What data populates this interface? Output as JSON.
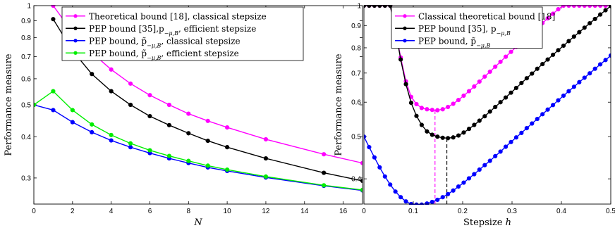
{
  "chart_data": [
    {
      "type": "line",
      "xlabel": "N",
      "ylabel": "Performance measure",
      "yscale": "log",
      "xlim": [
        0,
        17
      ],
      "ylim": [
        0.25,
        1
      ],
      "xticks": [
        0,
        2,
        4,
        6,
        8,
        10,
        12,
        14,
        16
      ],
      "yticks": [
        0.3,
        0.4,
        0.5,
        0.6,
        0.7,
        0.8,
        0.9,
        1
      ],
      "ytick_labels": [
        "0.3",
        "0.4",
        "0.5",
        "0.6",
        "0.7",
        "0.8",
        "0.9",
        "1"
      ],
      "legend": "top-right",
      "series": [
        {
          "name": "Theoretical bound [18], classical stepsize",
          "color": "#ff00ff",
          "x": [
            1,
            2,
            3,
            4,
            5,
            6,
            7,
            8,
            9,
            10,
            12,
            15,
            17
          ],
          "values": [
            1.0,
            0.83,
            0.72,
            0.64,
            0.58,
            0.535,
            0.5,
            0.47,
            0.447,
            0.427,
            0.393,
            0.354,
            0.333
          ]
        },
        {
          "name": "PEP bound [35],p_{−μ,B}, efficient stepsize",
          "color": "#000000",
          "x": [
            1,
            2,
            3,
            4,
            5,
            6,
            7,
            8,
            9,
            10,
            12,
            15,
            17
          ],
          "values": [
            0.91,
            0.73,
            0.62,
            0.55,
            0.5,
            0.462,
            0.434,
            0.41,
            0.389,
            0.372,
            0.344,
            0.311,
            0.294
          ]
        },
        {
          "name": "PEP bound, p̃_{−μ,B}, classical stepsize",
          "color": "#0000ff",
          "x": [
            0,
            1,
            2,
            3,
            4,
            5,
            6,
            7,
            8,
            9,
            10,
            12,
            15,
            17
          ],
          "values": [
            0.5,
            0.482,
            0.443,
            0.413,
            0.39,
            0.372,
            0.357,
            0.344,
            0.333,
            0.323,
            0.315,
            0.301,
            0.284,
            0.275
          ]
        },
        {
          "name": "PEP bound, p̃_{−μ,B}, efficient stepsize",
          "color": "#00ee00",
          "x": [
            0,
            1,
            2,
            3,
            4,
            5,
            6,
            7,
            8,
            9,
            10,
            12,
            15,
            17
          ],
          "values": [
            0.5,
            0.55,
            0.482,
            0.436,
            0.405,
            0.382,
            0.364,
            0.35,
            0.338,
            0.327,
            0.318,
            0.303,
            0.285,
            0.276
          ]
        }
      ]
    },
    {
      "type": "line",
      "xlabel": "Stepsize h",
      "ylabel": "Performance measure",
      "yscale": "log",
      "xlim": [
        0,
        0.5
      ],
      "ylim": [
        0.35,
        1
      ],
      "xticks": [
        0,
        0.1,
        0.2,
        0.3,
        0.4,
        0.5
      ],
      "xtick_labels": [
        "0",
        "0.1",
        "0.2",
        "0.3",
        "0.4",
        "0.5"
      ],
      "yticks": [
        0.4,
        0.5,
        0.6,
        0.7,
        0.8,
        0.9,
        1
      ],
      "ytick_labels": [
        "0.4",
        "0.5",
        "0.6",
        "0.7",
        "0.8",
        "0.9",
        "1"
      ],
      "legend": "top-left",
      "series": [
        {
          "name": "Classical theoretical bound [18]",
          "color": "#ff00ff",
          "h_opt": 0.144,
          "x": [
            0.0,
            0.0106,
            0.0213,
            0.0319,
            0.0426,
            0.0532,
            0.0638,
            0.0745,
            0.0851,
            0.0957,
            0.1064,
            0.117,
            0.1277,
            0.1383,
            0.1489,
            0.1596,
            0.1702,
            0.1809,
            0.1915,
            0.2021,
            0.2128,
            0.2234,
            0.234,
            0.2447,
            0.2553,
            0.266,
            0.2766,
            0.2872,
            0.2979,
            0.3085,
            0.3191,
            0.3298,
            0.3404,
            0.3511,
            0.3617,
            0.3723,
            0.383,
            0.3936,
            0.4043,
            0.4149,
            0.4255,
            0.4362,
            0.4468,
            0.4574,
            0.4681,
            0.4787,
            0.4894,
            0.5
          ],
          "values": [
            1.0,
            1.0,
            1.0,
            1.0,
            1.0,
            1.0,
            0.88,
            0.76,
            0.67,
            0.617,
            0.594,
            0.582,
            0.578,
            0.576,
            0.575,
            0.578,
            0.585,
            0.595,
            0.607,
            0.621,
            0.636,
            0.652,
            0.669,
            0.687,
            0.705,
            0.724,
            0.743,
            0.763,
            0.783,
            0.804,
            0.825,
            0.846,
            0.868,
            0.89,
            0.912,
            0.935,
            0.958,
            0.981,
            1.0,
            1.0,
            1.0,
            1.0,
            1.0,
            1.0,
            1.0,
            1.0,
            1.0,
            1.0
          ]
        },
        {
          "name": "PEP bound [35], p_{−μ,B}",
          "color": "#000000",
          "h_opt": 0.168,
          "x": [
            0.0,
            0.0106,
            0.0213,
            0.0319,
            0.0426,
            0.0532,
            0.0638,
            0.0745,
            0.0851,
            0.0957,
            0.1064,
            0.117,
            0.1277,
            0.1383,
            0.1489,
            0.1596,
            0.1702,
            0.1809,
            0.1915,
            0.2021,
            0.2128,
            0.2234,
            0.234,
            0.2447,
            0.2553,
            0.266,
            0.2766,
            0.2872,
            0.2979,
            0.3085,
            0.3191,
            0.3298,
            0.3404,
            0.3511,
            0.3617,
            0.3723,
            0.383,
            0.3936,
            0.4043,
            0.4149,
            0.4255,
            0.4362,
            0.4468,
            0.4574,
            0.4681,
            0.4787,
            0.4894,
            0.5
          ],
          "values": [
            1.0,
            1.0,
            1.0,
            1.0,
            1.0,
            1.0,
            0.88,
            0.752,
            0.66,
            0.598,
            0.558,
            0.532,
            0.514,
            0.505,
            0.5,
            0.497,
            0.496,
            0.498,
            0.503,
            0.511,
            0.521,
            0.532,
            0.544,
            0.557,
            0.571,
            0.585,
            0.6,
            0.615,
            0.631,
            0.647,
            0.664,
            0.681,
            0.698,
            0.716,
            0.734,
            0.752,
            0.771,
            0.79,
            0.809,
            0.829,
            0.849,
            0.869,
            0.89,
            0.911,
            0.932,
            0.954,
            0.976,
            0.998
          ]
        },
        {
          "name": "PEP bound, p̃_{−μ,B}",
          "color": "#0000ff",
          "h_opt": 0.103,
          "x": [
            0.0,
            0.0106,
            0.0213,
            0.0319,
            0.0426,
            0.0532,
            0.0638,
            0.0745,
            0.0851,
            0.0957,
            0.1064,
            0.117,
            0.1277,
            0.1383,
            0.1489,
            0.1596,
            0.1702,
            0.1809,
            0.1915,
            0.2021,
            0.2128,
            0.2234,
            0.234,
            0.2447,
            0.2553,
            0.266,
            0.2766,
            0.2872,
            0.2979,
            0.3085,
            0.3191,
            0.3298,
            0.3404,
            0.3511,
            0.3617,
            0.3723,
            0.383,
            0.3936,
            0.4043,
            0.4149,
            0.4255,
            0.4362,
            0.4468,
            0.4574,
            0.4681,
            0.4787,
            0.4894,
            0.5
          ],
          "values": [
            0.5,
            0.473,
            0.448,
            0.425,
            0.405,
            0.388,
            0.374,
            0.363,
            0.355,
            0.35,
            0.349,
            0.349,
            0.351,
            0.354,
            0.358,
            0.363,
            0.369,
            0.376,
            0.384,
            0.392,
            0.401,
            0.41,
            0.42,
            0.43,
            0.44,
            0.451,
            0.462,
            0.474,
            0.486,
            0.498,
            0.51,
            0.523,
            0.536,
            0.549,
            0.563,
            0.577,
            0.591,
            0.606,
            0.621,
            0.636,
            0.651,
            0.667,
            0.683,
            0.699,
            0.716,
            0.733,
            0.75,
            0.768
          ]
        }
      ]
    }
  ]
}
